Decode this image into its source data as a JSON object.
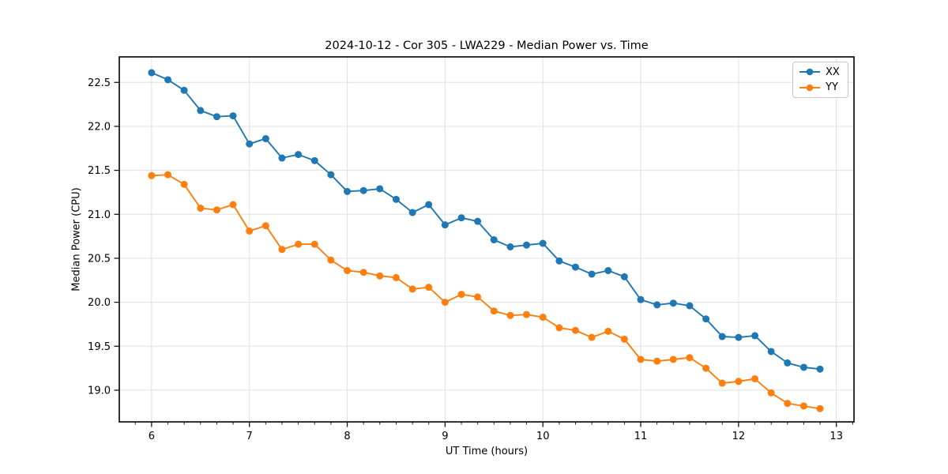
{
  "chart_data": {
    "type": "line",
    "title": "2024-10-12 - Cor 305 - LWA229 - Median Power vs. Time",
    "xlabel": "UT Time (hours)",
    "ylabel": "Median Power (CPU)",
    "xlim": [
      5.67,
      13.18
    ],
    "ylim": [
      18.64,
      22.79
    ],
    "xticks": [
      6,
      7,
      8,
      9,
      10,
      11,
      12,
      13
    ],
    "yticks": [
      19.0,
      19.5,
      20.0,
      20.5,
      21.0,
      21.5,
      22.0,
      22.5
    ],
    "minor_xtick_step": 0.16667,
    "grid": true,
    "legend_position": "upper right",
    "marker": "circle",
    "x": [
      6.0,
      6.167,
      6.333,
      6.5,
      6.667,
      6.833,
      7.0,
      7.167,
      7.333,
      7.5,
      7.667,
      7.833,
      8.0,
      8.167,
      8.333,
      8.5,
      8.667,
      8.833,
      9.0,
      9.167,
      9.333,
      9.5,
      9.667,
      9.833,
      10.0,
      10.167,
      10.333,
      10.5,
      10.667,
      10.833,
      11.0,
      11.167,
      11.333,
      11.5,
      11.667,
      11.833,
      12.0,
      12.167,
      12.333,
      12.5,
      12.667,
      12.833
    ],
    "series": [
      {
        "name": "XX",
        "color": "#1f77b4",
        "values": [
          22.61,
          22.53,
          22.41,
          22.18,
          22.11,
          22.12,
          21.8,
          21.86,
          21.64,
          21.68,
          21.61,
          21.45,
          21.26,
          21.27,
          21.29,
          21.17,
          21.02,
          21.11,
          20.88,
          20.96,
          20.92,
          20.71,
          20.63,
          20.65,
          20.67,
          20.47,
          20.4,
          20.32,
          20.36,
          20.29,
          20.03,
          19.97,
          19.99,
          19.96,
          19.81,
          19.61,
          19.6,
          19.62,
          19.44,
          19.31,
          19.26,
          19.24
        ]
      },
      {
        "name": "YY",
        "color": "#ff7f0e",
        "values": [
          21.44,
          21.45,
          21.34,
          21.07,
          21.05,
          21.11,
          20.81,
          20.87,
          20.6,
          20.66,
          20.66,
          20.48,
          20.36,
          20.34,
          20.3,
          20.28,
          20.15,
          20.17,
          20.0,
          20.09,
          20.06,
          19.9,
          19.85,
          19.86,
          19.83,
          19.71,
          19.68,
          19.6,
          19.67,
          19.58,
          19.35,
          19.33,
          19.35,
          19.37,
          19.25,
          19.08,
          19.1,
          19.13,
          18.97,
          18.85,
          18.82,
          18.79
        ]
      }
    ],
    "colors": {
      "grid": "#e0e0e0",
      "frame": "#000000",
      "background": "#ffffff"
    }
  }
}
